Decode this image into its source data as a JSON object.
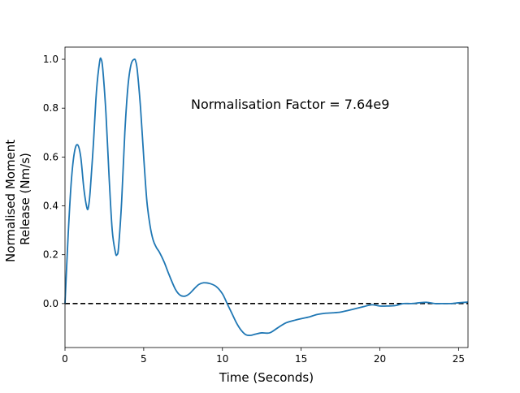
{
  "chart_data": {
    "type": "line",
    "title": "",
    "xlabel": "Time (Seconds)",
    "ylabel": [
      "Normalised Moment",
      "Release (Nm/s)"
    ],
    "xlim": [
      0,
      25.6
    ],
    "ylim": [
      -0.18,
      1.05
    ],
    "xticks": [
      0,
      5,
      10,
      15,
      20,
      25
    ],
    "xtick_labels": [
      "0",
      "5",
      "10",
      "15",
      "20",
      "25"
    ],
    "yticks": [
      0.0,
      0.2,
      0.4,
      0.6,
      0.8,
      1.0
    ],
    "ytick_labels": [
      "0.0",
      "0.2",
      "0.4",
      "0.6",
      "0.8",
      "1.0"
    ],
    "grid": false,
    "annotation": "Normalisation Factor = 7.64e9",
    "reference_line": {
      "y": 0.0,
      "style": "dashed",
      "color": "#000000"
    },
    "series": [
      {
        "color": "#1f77b4",
        "x": [
          0,
          0.2,
          0.4,
          0.6,
          0.8,
          1.0,
          1.2,
          1.4,
          1.5,
          1.6,
          1.8,
          2.0,
          2.2,
          2.3,
          2.4,
          2.6,
          2.8,
          3.0,
          3.2,
          3.3,
          3.4,
          3.6,
          3.8,
          4.0,
          4.2,
          4.4,
          4.5,
          4.6,
          4.8,
          5.0,
          5.2,
          5.4,
          5.6,
          5.8,
          6.0,
          6.3,
          6.6,
          7.0,
          7.3,
          7.6,
          7.9,
          8.2,
          8.5,
          8.8,
          9.2,
          9.6,
          10.0,
          10.3,
          10.6,
          10.9,
          11.2,
          11.5,
          11.8,
          12.1,
          12.5,
          13.0,
          13.5,
          14.0,
          14.5,
          15.0,
          15.5,
          16.0,
          16.5,
          17.0,
          17.5,
          18.0,
          18.5,
          19.0,
          19.5,
          20.0,
          20.5,
          21.0,
          21.5,
          22.0,
          22.5,
          23.0,
          23.5,
          24.0,
          24.5,
          25.0,
          25.6
        ],
        "y": [
          0.0,
          0.28,
          0.5,
          0.62,
          0.65,
          0.6,
          0.47,
          0.39,
          0.4,
          0.46,
          0.65,
          0.87,
          0.99,
          1.0,
          0.96,
          0.78,
          0.52,
          0.3,
          0.21,
          0.2,
          0.23,
          0.42,
          0.7,
          0.89,
          0.98,
          1.0,
          0.99,
          0.95,
          0.8,
          0.6,
          0.42,
          0.32,
          0.26,
          0.23,
          0.21,
          0.17,
          0.12,
          0.06,
          0.035,
          0.03,
          0.04,
          0.06,
          0.078,
          0.085,
          0.082,
          0.07,
          0.04,
          0.0,
          -0.04,
          -0.08,
          -0.11,
          -0.128,
          -0.13,
          -0.125,
          -0.12,
          -0.12,
          -0.1,
          -0.08,
          -0.07,
          -0.062,
          -0.055,
          -0.045,
          -0.04,
          -0.038,
          -0.035,
          -0.028,
          -0.02,
          -0.012,
          -0.005,
          -0.01,
          -0.01,
          -0.008,
          0.0,
          0.0,
          0.003,
          0.005,
          0.0,
          0.0,
          0.0,
          0.003,
          0.006
        ]
      }
    ]
  }
}
